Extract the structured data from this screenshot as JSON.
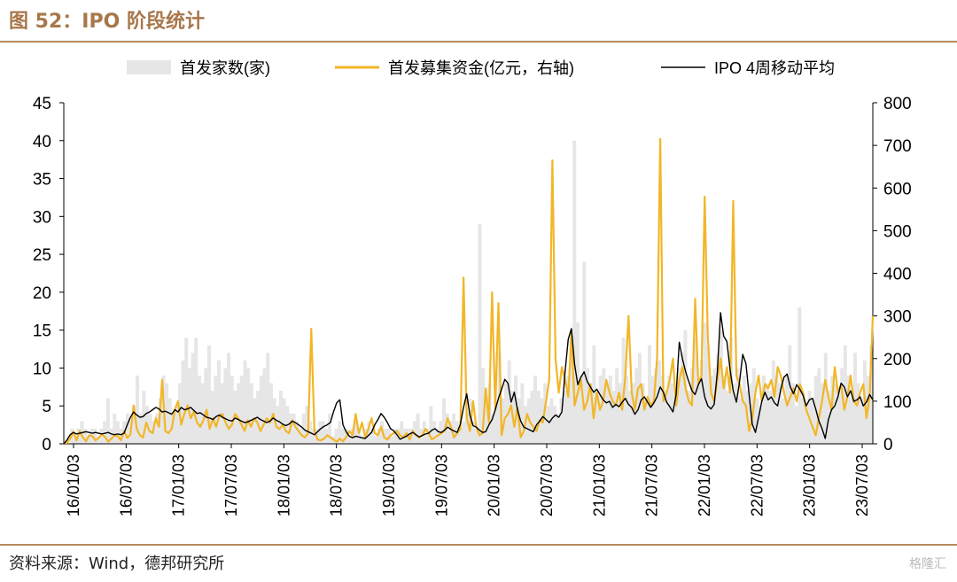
{
  "title": "图 52：IPO 阶段统计",
  "source": "资料来源：Wind，德邦研究所",
  "watermark": "格隆汇",
  "chart_data": {
    "type": "bar",
    "x_tick_labels": [
      "16/01/03",
      "16/07/03",
      "17/01/03",
      "17/07/03",
      "18/01/03",
      "18/07/03",
      "19/01/03",
      "19/07/03",
      "20/01/03",
      "20/07/03",
      "21/01/03",
      "21/07/03",
      "22/01/03",
      "22/07/03",
      "23/01/03",
      "23/07/03"
    ],
    "y_left": {
      "ticks": [
        0,
        5,
        10,
        15,
        20,
        25,
        30,
        35,
        40,
        45
      ],
      "range": [
        0,
        45
      ]
    },
    "y_right": {
      "ticks": [
        0,
        100,
        200,
        300,
        400,
        500,
        600,
        700,
        800
      ],
      "range": [
        0,
        800
      ]
    },
    "grid": false,
    "legend_position": "top",
    "colors": {
      "count": "#e6e6e6",
      "funds": "#f2b629",
      "avg": "#000000"
    },
    "series": [
      {
        "name": "首发家数(家)",
        "type": "bar",
        "axis": "left",
        "values": [
          0,
          0,
          2,
          1,
          2,
          3,
          2,
          1,
          2,
          2,
          1,
          2,
          3,
          6,
          2,
          4,
          3,
          2,
          3,
          4,
          3,
          5,
          9,
          4,
          7,
          5,
          4,
          3,
          4,
          6,
          9,
          8,
          6,
          4,
          5,
          8,
          11,
          14,
          10,
          12,
          14,
          9,
          8,
          10,
          13,
          7,
          9,
          11,
          8,
          10,
          12,
          9,
          7,
          8,
          9,
          11,
          10,
          8,
          6,
          7,
          9,
          10,
          12,
          8,
          6,
          5,
          7,
          6,
          5,
          4,
          4,
          3,
          2,
          4,
          5,
          3,
          2,
          2,
          3,
          3,
          2,
          4,
          1,
          2,
          3,
          2,
          2,
          1,
          2,
          3,
          2,
          1,
          2,
          3,
          2,
          1,
          2,
          3,
          2,
          2,
          1,
          2,
          2,
          3,
          2,
          2,
          2,
          3,
          4,
          2,
          3,
          2,
          5,
          3,
          2,
          3,
          6,
          4,
          3,
          4,
          3,
          2,
          3,
          4,
          6,
          3,
          2,
          29,
          10,
          6,
          8,
          4,
          5,
          12,
          6,
          8,
          11,
          7,
          9,
          6,
          8,
          5,
          6,
          7,
          9,
          7,
          6,
          8,
          5,
          6,
          5,
          4,
          6,
          7,
          9,
          14,
          40,
          16,
          9,
          24,
          10,
          8,
          13,
          7,
          9,
          10,
          8,
          9,
          7,
          10,
          8,
          14,
          9,
          7,
          8,
          10,
          12,
          8,
          6,
          13,
          9,
          10,
          11,
          9,
          7,
          9,
          8,
          6,
          10,
          12,
          15,
          7,
          10,
          14,
          8,
          11,
          16,
          13,
          9,
          10,
          12,
          15,
          9,
          7,
          14,
          8,
          10,
          6,
          9,
          7,
          8,
          10,
          6,
          5,
          9,
          8,
          7,
          11,
          9,
          8,
          6,
          9,
          13,
          8,
          5,
          18,
          6,
          5,
          7,
          6,
          9,
          10,
          8,
          12,
          7,
          9,
          8,
          7,
          10,
          13,
          9,
          6,
          12,
          8,
          6,
          11,
          9,
          13
        ]
      },
      {
        "name": "首发募集资金(亿元，右轴)",
        "type": "line",
        "axis": "right",
        "values": [
          3,
          2,
          12,
          28,
          8,
          30,
          15,
          6,
          20,
          18,
          8,
          14,
          22,
          16,
          5,
          12,
          20,
          18,
          8,
          30,
          14,
          22,
          90,
          35,
          20,
          15,
          50,
          30,
          25,
          60,
          40,
          150,
          30,
          25,
          35,
          80,
          100,
          45,
          70,
          90,
          60,
          75,
          50,
          40,
          55,
          80,
          35,
          60,
          40,
          65,
          70,
          50,
          35,
          45,
          70,
          60,
          45,
          30,
          55,
          40,
          60,
          50,
          30,
          45,
          60,
          50,
          70,
          40,
          35,
          45,
          30,
          25,
          55,
          40,
          30,
          20,
          15,
          25,
          270,
          30,
          10,
          8,
          12,
          20,
          15,
          10,
          5,
          12,
          6,
          15,
          30,
          20,
          70,
          25,
          50,
          15,
          35,
          60,
          25,
          20,
          40,
          15,
          10,
          20,
          25,
          30,
          20,
          15,
          25,
          10,
          30,
          20,
          15,
          20,
          35,
          25,
          10,
          15,
          20,
          25,
          30,
          60,
          40,
          15,
          25,
          35,
          390,
          60,
          30,
          100,
          40,
          20,
          25,
          130,
          50,
          355,
          80,
          330,
          20,
          60,
          70,
          90,
          40,
          85,
          15,
          30,
          70,
          50,
          40,
          30,
          55,
          50,
          100,
          150,
          665,
          200,
          120,
          180,
          150,
          110,
          260,
          90,
          120,
          150,
          80,
          100,
          140,
          60,
          120,
          80,
          100,
          150,
          120,
          100,
          90,
          120,
          80,
          160,
          300,
          120,
          80,
          130,
          140,
          80,
          110,
          90,
          100,
          200,
          715,
          100,
          120,
          150,
          200,
          90,
          150,
          180,
          130,
          100,
          90,
          340,
          140,
          160,
          580,
          250,
          120,
          100,
          150,
          200,
          130,
          180,
          120,
          570,
          160,
          140,
          100,
          90,
          30,
          60,
          120,
          160,
          100,
          140,
          130,
          150,
          110,
          180,
          160,
          120,
          90,
          110,
          130,
          100,
          140,
          120,
          80,
          60,
          40,
          20,
          60,
          100,
          150,
          110,
          80,
          180,
          120,
          140,
          80,
          110,
          160,
          100,
          90,
          120,
          140,
          60,
          110,
          300
        ]
      },
      {
        "name": "IPO 4周移动平均",
        "type": "line",
        "axis": "left",
        "values": [
          0,
          0.5,
          1.2,
          1.5,
          1.3,
          1.4,
          1.5,
          1.6,
          1.5,
          1.4,
          1.5,
          1.4,
          1.3,
          1.4,
          1.5,
          1.3,
          1.2,
          1.3,
          1.2,
          1.4,
          2.5,
          3.5,
          4.2,
          3.8,
          3.5,
          3.6,
          4.0,
          4.2,
          4.5,
          4.8,
          4.6,
          4.2,
          4.3,
          4.1,
          3.9,
          4.5,
          4.2,
          4.8,
          4.5,
          4.6,
          4.8,
          4.4,
          4.0,
          4.1,
          3.8,
          3.5,
          3.4,
          3.2,
          3.6,
          3.8,
          3.5,
          3.3,
          3.1,
          3.0,
          3.4,
          3.2,
          3.0,
          2.8,
          2.9,
          3.1,
          3.3,
          3.5,
          3.2,
          3.0,
          2.8,
          3.0,
          3.4,
          3.1,
          2.9,
          2.6,
          2.4,
          2.6,
          3.0,
          2.8,
          2.5,
          2.2,
          1.8,
          1.6,
          1.4,
          1.2,
          1.6,
          2.0,
          2.3,
          2.5,
          2.8,
          4.2,
          5.4,
          5.8,
          2.5,
          1.6,
          1.0,
          0.8,
          1.0,
          0.9,
          0.8,
          0.7,
          1.1,
          1.5,
          2.5,
          3.2,
          4.0,
          3.5,
          2.8,
          2.0,
          1.7,
          1.2,
          0.6,
          0.8,
          1.0,
          1.3,
          1.5,
          1.2,
          0.9,
          1.1,
          1.3,
          1.4,
          1.8,
          2.0,
          1.6,
          1.5,
          1.8,
          2.2,
          1.9,
          1.7,
          1.5,
          2.6,
          4.8,
          6.6,
          3.8,
          2.4,
          2.2,
          1.8,
          1.5,
          1.6,
          2.5,
          3.2,
          4.5,
          6.0,
          7.2,
          8.5,
          8.0,
          5.5,
          6.8,
          4.5,
          3.0,
          2.2,
          2.0,
          1.8,
          1.6,
          2.5,
          3.0,
          3.6,
          3.2,
          2.8,
          3.4,
          3.8,
          3.5,
          4.2,
          9.5,
          13.8,
          15.2,
          10.5,
          7.8,
          8.8,
          9.5,
          8.2,
          7.5,
          6.8,
          7.2,
          6.5,
          5.8,
          5.4,
          5.6,
          4.8,
          5.2,
          4.9,
          5.5,
          6.0,
          5.2,
          4.8,
          3.9,
          4.5,
          5.8,
          6.2,
          5.5,
          4.8,
          5.4,
          6.2,
          7.5,
          6.8,
          5.5,
          4.9,
          4.2,
          6.5,
          13.4,
          11.2,
          9.5,
          8.2,
          7.0,
          6.5,
          7.8,
          8.6,
          6.2,
          5.0,
          4.6,
          5.2,
          9.5,
          17.3,
          14.2,
          13.5,
          9.8,
          7.0,
          5.5,
          8.2,
          11.8,
          10.6,
          6.5,
          2.6,
          1.5,
          3.5,
          5.6,
          6.8,
          5.8,
          6.2,
          5.4,
          5.0,
          7.2,
          8.8,
          9.2,
          7.5,
          6.6,
          7.8,
          7.2,
          6.4,
          5.0,
          5.8,
          6.0,
          4.6,
          3.0,
          2.0,
          0.7,
          3.2,
          4.5,
          5.0,
          6.2,
          8.0,
          7.5,
          6.2,
          7.0,
          5.6,
          5.8,
          6.2,
          5.0,
          5.5,
          6.5,
          5.8
        ]
      }
    ]
  }
}
